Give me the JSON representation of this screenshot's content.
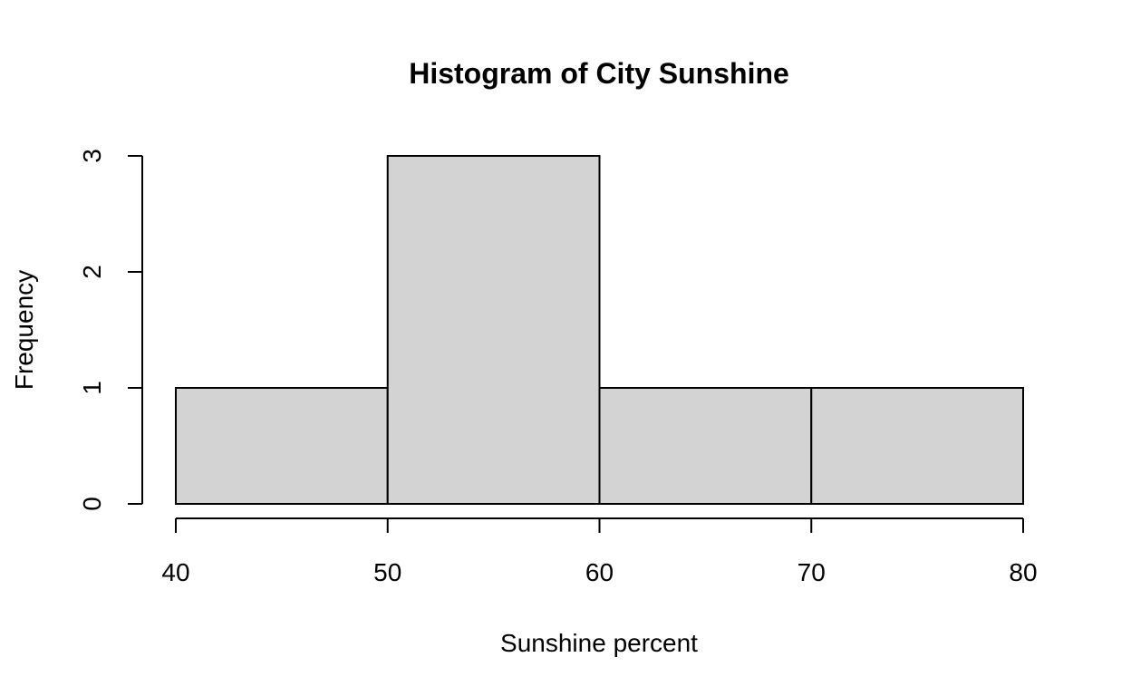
{
  "chart_data": {
    "type": "bar",
    "subtype": "histogram",
    "title": "Histogram of City Sunshine",
    "xlabel": "Sunshine percent",
    "ylabel": "Frequency",
    "bins": [
      {
        "from": 40,
        "to": 50,
        "count": 1
      },
      {
        "from": 50,
        "to": 60,
        "count": 3
      },
      {
        "from": 60,
        "to": 70,
        "count": 1
      },
      {
        "from": 70,
        "to": 80,
        "count": 1
      }
    ],
    "x_ticks": [
      "40",
      "50",
      "60",
      "70",
      "80"
    ],
    "y_ticks": [
      "0",
      "1",
      "2",
      "3"
    ],
    "xlim": [
      40,
      80
    ],
    "ylim": [
      0,
      3
    ],
    "grid": false,
    "colors": {
      "bar_fill": "#d3d3d3",
      "bar_stroke": "#000000",
      "axis": "#000000"
    }
  }
}
